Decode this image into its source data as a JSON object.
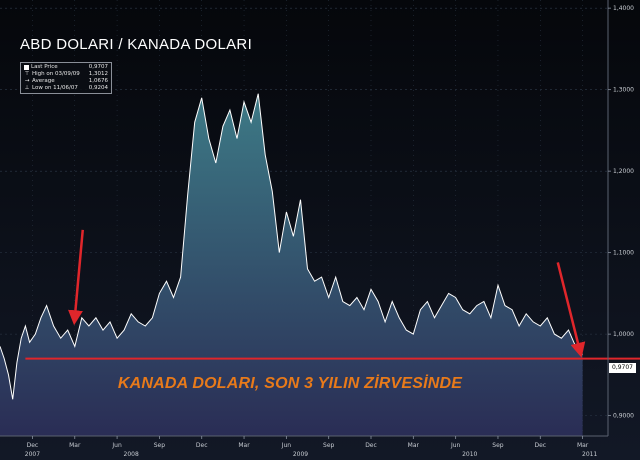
{
  "chart_data": {
    "type": "line",
    "title": "ABD DOLARI / KANADA DOLARI",
    "annotation": "KANADA DOLARI, SON 3 YILIN ZİRVESİNDE",
    "ylim": [
      0.875,
      1.41
    ],
    "y_ticks": [
      "1,4000",
      "1,3000",
      "1,2000",
      "1,1000",
      "1,0000",
      "0,9000"
    ],
    "y_tick_values": [
      1.4,
      1.3,
      1.2,
      1.1,
      1.0,
      0.9
    ],
    "x_months": [
      "Dec",
      "Mar",
      "Jun",
      "Sep",
      "Dec",
      "Mar",
      "Jun",
      "Sep",
      "Dec",
      "Mar",
      "Jun",
      "Sep",
      "Dec",
      "Mar"
    ],
    "x_month_positions": [
      0.0,
      3.0,
      6.0,
      9.0,
      12.0,
      15.0,
      18.0,
      21.0,
      24.0,
      27.0,
      30.0,
      33.0,
      36.0,
      39.0
    ],
    "x_years": [
      "2007",
      "2008",
      "2009",
      "2010",
      "2011"
    ],
    "x_year_positions": [
      0.0,
      7.0,
      19.0,
      31.0,
      39.5
    ],
    "xlim": [
      -2.3,
      40.8
    ],
    "x": [
      -2.3,
      -2.0,
      -1.7,
      -1.4,
      -1.1,
      -0.8,
      -0.5,
      -0.2,
      0.2,
      0.6,
      1.0,
      1.5,
      2.0,
      2.5,
      3.0,
      3.5,
      4.0,
      4.5,
      5.0,
      5.5,
      6.0,
      6.5,
      7.0,
      7.5,
      8.0,
      8.5,
      9.0,
      9.5,
      10.0,
      10.5,
      11.0,
      11.5,
      12.0,
      12.5,
      13.0,
      13.5,
      14.0,
      14.5,
      15.0,
      15.5,
      16.0,
      16.5,
      17.0,
      17.5,
      18.0,
      18.5,
      19.0,
      19.5,
      20.0,
      20.5,
      21.0,
      21.5,
      22.0,
      22.5,
      23.0,
      23.5,
      24.0,
      24.5,
      25.0,
      25.5,
      26.0,
      26.5,
      27.0,
      27.5,
      28.0,
      28.5,
      29.0,
      29.5,
      30.0,
      30.5,
      31.0,
      31.5,
      32.0,
      32.5,
      33.0,
      33.5,
      34.0,
      34.5,
      35.0,
      35.5,
      36.0,
      36.5,
      37.0,
      37.5,
      38.0,
      38.5,
      39.0
    ],
    "y": [
      0.985,
      0.97,
      0.95,
      0.92,
      0.965,
      0.995,
      1.01,
      0.99,
      1.0,
      1.02,
      1.035,
      1.01,
      0.995,
      1.005,
      0.985,
      1.02,
      1.01,
      1.02,
      1.005,
      1.015,
      0.995,
      1.005,
      1.025,
      1.015,
      1.01,
      1.02,
      1.05,
      1.065,
      1.045,
      1.07,
      1.17,
      1.26,
      1.29,
      1.24,
      1.21,
      1.255,
      1.275,
      1.24,
      1.285,
      1.26,
      1.295,
      1.22,
      1.175,
      1.1,
      1.15,
      1.12,
      1.165,
      1.08,
      1.065,
      1.07,
      1.045,
      1.07,
      1.04,
      1.035,
      1.045,
      1.03,
      1.055,
      1.04,
      1.015,
      1.04,
      1.02,
      1.005,
      1.0,
      1.03,
      1.04,
      1.02,
      1.035,
      1.05,
      1.045,
      1.03,
      1.025,
      1.035,
      1.04,
      1.02,
      1.06,
      1.035,
      1.03,
      1.01,
      1.025,
      1.015,
      1.01,
      1.02,
      1.0,
      0.995,
      1.005,
      0.985,
      0.975
    ],
    "reference_line": 0.97,
    "last_value_label": "0,9707",
    "legend": {
      "entries": [
        {
          "icon": "square-icon",
          "label": "Last Price",
          "value": "0,9707"
        },
        {
          "icon": "high-marker-icon",
          "label": "High on 03/09/09",
          "value": "1,3012"
        },
        {
          "icon": "average-marker-icon",
          "label": "Average",
          "value": "1,0676"
        },
        {
          "icon": "low-marker-icon",
          "label": "Low on 11/06/07",
          "value": "0,9204"
        }
      ]
    },
    "arrow_targets": [
      {
        "x": 3.0,
        "y": 1.02
      },
      {
        "x": 38.8,
        "y": 0.98
      }
    ],
    "colors": {
      "line": "#ffffff",
      "fill_top": "#3d7a86",
      "fill_bottom": "#2a2d55",
      "reference_line": "#e0262b",
      "arrow": "#e0262b",
      "annotation": "#e87a1a",
      "axis_text": "#c8ccd2",
      "grid": "#2e3a4a"
    }
  }
}
